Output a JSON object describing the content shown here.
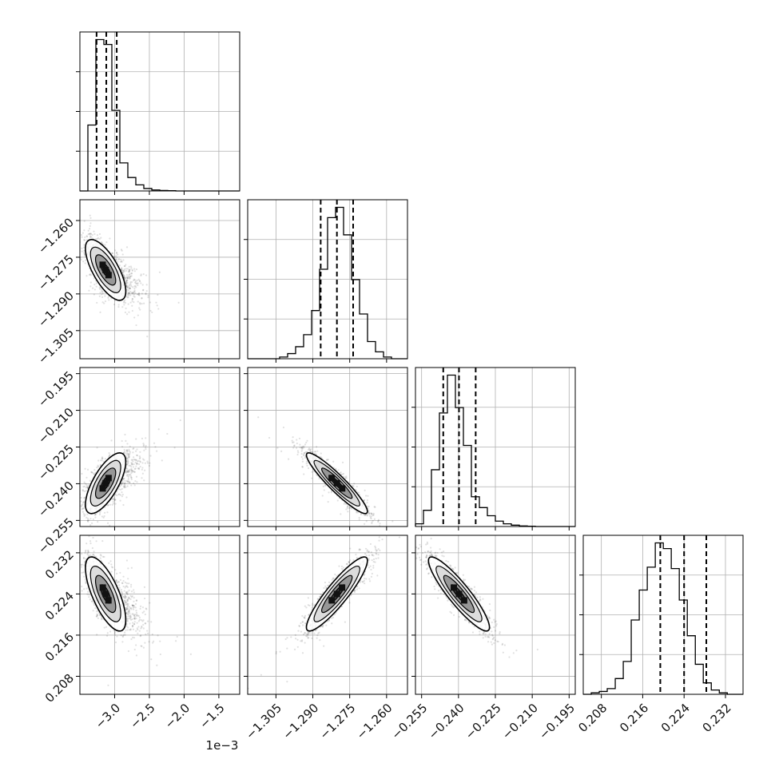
{
  "chart_data": {
    "type": "corner",
    "grid": true,
    "parameters": [
      {
        "range": [
          -0.0035,
          -0.0012
        ],
        "ticks": [
          -0.003,
          -0.0025,
          -0.002,
          -0.0015
        ],
        "tick_labels": [
          "−3.0",
          "−2.5",
          "−2.0",
          "−1.5"
        ],
        "offset_label": "1e−3",
        "quantiles": [
          -0.00326,
          -0.00312,
          -0.00297
        ]
      },
      {
        "range": [
          -1.3165,
          -1.2515
        ],
        "ticks": [
          -1.305,
          -1.29,
          -1.275,
          -1.26
        ],
        "tick_labels": [
          "−1.305",
          "−1.290",
          "−1.275",
          "−1.260"
        ],
        "quantiles": [
          -1.2868,
          -1.2802,
          -1.2736
        ]
      },
      {
        "range": [
          -0.2575,
          -0.1925
        ],
        "ticks": [
          -0.255,
          -0.24,
          -0.225,
          -0.21,
          -0.195
        ],
        "tick_labels": [
          "−0.255",
          "−0.240",
          "−0.225",
          "−0.210",
          "−0.195"
        ],
        "quantiles": [
          -0.2462,
          -0.2398,
          -0.233
        ]
      },
      {
        "range": [
          0.2045,
          0.2354
        ],
        "ticks": [
          0.208,
          0.216,
          0.224,
          0.232
        ],
        "tick_labels": [
          "0.208",
          "0.216",
          "0.224",
          "0.232"
        ],
        "quantiles": [
          0.2194,
          0.224,
          0.2283
        ]
      }
    ],
    "histograms": [
      {
        "param": 0,
        "bins": [
          -0.0035,
          -0.003385,
          -0.00327,
          -0.003155,
          -0.00304,
          -0.002925,
          -0.00281,
          -0.002695,
          -0.00258,
          -0.002465,
          -0.00235,
          -0.002235,
          -0.00212,
          -0.002005,
          -0.00189,
          -0.001775,
          -0.00166,
          -0.001545,
          -0.00143,
          -0.001315,
          -0.0012
        ],
        "counts": [
          0,
          270,
          620,
          600,
          330,
          115,
          55,
          25,
          10,
          4,
          2,
          1,
          0,
          0,
          0,
          0,
          0,
          0,
          0,
          0
        ]
      },
      {
        "param": 1,
        "bins": [
          -1.3165,
          -1.31325,
          -1.31,
          -1.30675,
          -1.3035,
          -1.30025,
          -1.297,
          -1.29375,
          -1.2905,
          -1.28725,
          -1.284,
          -1.28075,
          -1.2775,
          -1.27425,
          -1.271,
          -1.26775,
          -1.2645,
          -1.26125,
          -1.258,
          -1.25475,
          -1.2515
        ],
        "counts": [
          0,
          0,
          0,
          0,
          5,
          15,
          35,
          70,
          140,
          260,
          410,
          440,
          360,
          230,
          130,
          50,
          20,
          5,
          0,
          0
        ]
      },
      {
        "param": 2,
        "bins": [
          -0.2575,
          -0.25425,
          -0.251,
          -0.24775,
          -0.2445,
          -0.24125,
          -0.238,
          -0.23475,
          -0.2315,
          -0.22825,
          -0.225,
          -0.22175,
          -0.2185,
          -0.21525,
          -0.212,
          -0.20875,
          -0.2055,
          -0.20225,
          -0.199,
          -0.19575,
          -0.1925
        ],
        "counts": [
          10,
          60,
          210,
          420,
          560,
          440,
          300,
          110,
          70,
          40,
          20,
          10,
          5,
          2,
          1,
          0,
          0,
          0,
          0,
          0
        ]
      },
      {
        "param": 3,
        "bins": [
          0.2045,
          0.20605,
          0.2076,
          0.20914,
          0.21069,
          0.21224,
          0.21378,
          0.21533,
          0.21688,
          0.21843,
          0.21998,
          0.22152,
          0.22307,
          0.22462,
          0.22617,
          0.22771,
          0.22926,
          0.23081,
          0.23236,
          0.2339,
          0.2354
        ],
        "counts": [
          0,
          5,
          10,
          20,
          55,
          115,
          260,
          365,
          445,
          530,
          510,
          440,
          330,
          205,
          105,
          40,
          15,
          5,
          0,
          0
        ]
      }
    ],
    "pairs": [
      {
        "x": 0,
        "y": 1,
        "mean": [
          -0.00313,
          -1.2802
        ],
        "sigma": [
          0.000145,
          0.0062
        ],
        "corr": -0.7
      },
      {
        "x": 0,
        "y": 2,
        "mean": [
          -0.00313,
          -0.2398
        ],
        "sigma": [
          0.000145,
          0.0062
        ],
        "corr": 0.7
      },
      {
        "x": 0,
        "y": 3,
        "mean": [
          -0.00313,
          0.224
        ],
        "sigma": [
          0.000145,
          0.0036
        ],
        "corr": -0.7
      },
      {
        "x": 1,
        "y": 2,
        "mean": [
          -1.2802,
          -0.2398
        ],
        "sigma": [
          0.0062,
          0.0062
        ],
        "corr": -0.93
      },
      {
        "x": 1,
        "y": 3,
        "mean": [
          -1.2802,
          0.224
        ],
        "sigma": [
          0.0062,
          0.0036
        ],
        "corr": 0.9
      },
      {
        "x": 2,
        "y": 3,
        "mean": [
          -0.2398,
          0.224
        ],
        "sigma": [
          0.0062,
          0.0036
        ],
        "corr": -0.9
      }
    ],
    "contour_levels_sigma": [
      0.5,
      1.0,
      1.5,
      2.0
    ]
  }
}
